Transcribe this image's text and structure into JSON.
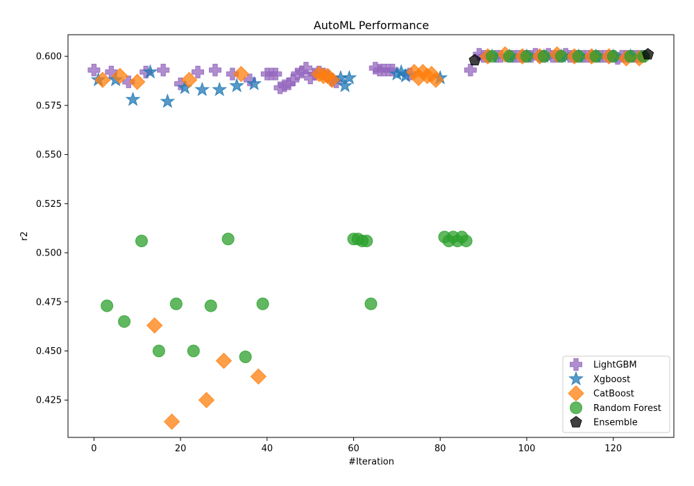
{
  "chart_data": {
    "type": "scatter",
    "title": "AutoML Performance",
    "xlabel": "#Iteration",
    "ylabel": "r2",
    "xlim": [
      -6,
      134
    ],
    "ylim": [
      0.406,
      0.611
    ],
    "xticks": [
      0,
      20,
      40,
      60,
      80,
      100,
      120
    ],
    "yticks": [
      0.425,
      0.45,
      0.475,
      0.5,
      0.525,
      0.55,
      0.575,
      0.6
    ],
    "ytick_labels": [
      "0.425",
      "0.450",
      "0.475",
      "0.500",
      "0.525",
      "0.550",
      "0.575",
      "0.600"
    ],
    "grid": false,
    "legend_position": "lower right",
    "series": [
      {
        "name": "LightGBM",
        "marker": "plus",
        "color": "#9467bd",
        "points": [
          [
            0,
            0.593
          ],
          [
            4,
            0.592
          ],
          [
            8,
            0.587
          ],
          [
            12,
            0.592
          ],
          [
            16,
            0.593
          ],
          [
            20,
            0.586
          ],
          [
            24,
            0.592
          ],
          [
            28,
            0.593
          ],
          [
            32,
            0.591
          ],
          [
            36,
            0.588
          ],
          [
            40,
            0.591
          ],
          [
            41,
            0.591
          ],
          [
            42,
            0.591
          ],
          [
            43,
            0.584
          ],
          [
            44,
            0.585
          ],
          [
            45,
            0.586
          ],
          [
            46,
            0.588
          ],
          [
            47,
            0.591
          ],
          [
            48,
            0.592
          ],
          [
            49,
            0.594
          ],
          [
            50,
            0.589
          ],
          [
            51,
            0.591
          ],
          [
            52,
            0.592
          ],
          [
            53,
            0.591
          ],
          [
            54,
            0.59
          ],
          [
            55,
            0.588
          ],
          [
            56,
            0.587
          ],
          [
            65,
            0.594
          ],
          [
            66,
            0.593
          ],
          [
            67,
            0.593
          ],
          [
            68,
            0.593
          ],
          [
            69,
            0.593
          ],
          [
            73,
            0.591
          ],
          [
            87,
            0.593
          ],
          [
            89,
            0.601
          ],
          [
            90,
            0.6
          ],
          [
            91,
            0.6
          ],
          [
            93,
            0.6
          ],
          [
            94,
            0.6
          ],
          [
            96,
            0.6
          ],
          [
            97,
            0.6
          ],
          [
            98,
            0.6
          ],
          [
            99,
            0.6
          ],
          [
            100,
            0.6
          ],
          [
            101,
            0.6
          ],
          [
            102,
            0.601
          ],
          [
            103,
            0.6
          ],
          [
            104,
            0.6
          ],
          [
            105,
            0.601
          ],
          [
            106,
            0.6
          ],
          [
            107,
            0.6
          ],
          [
            108,
            0.6
          ],
          [
            109,
            0.601
          ],
          [
            110,
            0.6
          ],
          [
            111,
            0.6
          ],
          [
            112,
            0.6
          ],
          [
            113,
            0.6
          ],
          [
            114,
            0.6
          ],
          [
            115,
            0.6
          ],
          [
            116,
            0.6
          ],
          [
            117,
            0.6
          ],
          [
            118,
            0.6
          ],
          [
            119,
            0.6
          ],
          [
            120,
            0.6
          ],
          [
            121,
            0.599
          ],
          [
            122,
            0.6
          ],
          [
            123,
            0.6
          ],
          [
            124,
            0.6
          ],
          [
            125,
            0.6
          ],
          [
            126,
            0.6
          ],
          [
            127,
            0.6
          ]
        ]
      },
      {
        "name": "Xgboost",
        "marker": "star",
        "color": "#1f77b4",
        "points": [
          [
            1,
            0.588
          ],
          [
            5,
            0.588
          ],
          [
            9,
            0.578
          ],
          [
            13,
            0.592
          ],
          [
            17,
            0.577
          ],
          [
            21,
            0.584
          ],
          [
            25,
            0.583
          ],
          [
            29,
            0.583
          ],
          [
            33,
            0.585
          ],
          [
            37,
            0.586
          ],
          [
            57,
            0.589
          ],
          [
            58,
            0.585
          ],
          [
            59,
            0.589
          ],
          [
            70,
            0.591
          ],
          [
            71,
            0.592
          ],
          [
            72,
            0.59
          ],
          [
            80,
            0.589
          ],
          [
            92,
            0.6
          ],
          [
            96,
            0.6
          ],
          [
            100,
            0.6
          ],
          [
            104,
            0.6
          ],
          [
            108,
            0.6
          ],
          [
            112,
            0.6
          ],
          [
            116,
            0.6
          ],
          [
            120,
            0.6
          ],
          [
            124,
            0.6
          ]
        ]
      },
      {
        "name": "CatBoost",
        "marker": "diamond",
        "color": "#ff7f0e",
        "points": [
          [
            2,
            0.588
          ],
          [
            6,
            0.59
          ],
          [
            10,
            0.587
          ],
          [
            14,
            0.463
          ],
          [
            18,
            0.414
          ],
          [
            22,
            0.588
          ],
          [
            26,
            0.425
          ],
          [
            30,
            0.445
          ],
          [
            34,
            0.591
          ],
          [
            38,
            0.437
          ],
          [
            52,
            0.591
          ],
          [
            53,
            0.59
          ],
          [
            54,
            0.59
          ],
          [
            55,
            0.588
          ],
          [
            74,
            0.592
          ],
          [
            75,
            0.589
          ],
          [
            76,
            0.592
          ],
          [
            77,
            0.59
          ],
          [
            78,
            0.591
          ],
          [
            79,
            0.588
          ],
          [
            91,
            0.6
          ],
          [
            95,
            0.601
          ],
          [
            99,
            0.6
          ],
          [
            103,
            0.6
          ],
          [
            107,
            0.601
          ],
          [
            111,
            0.6
          ],
          [
            115,
            0.6
          ],
          [
            119,
            0.6
          ],
          [
            123,
            0.599
          ],
          [
            126,
            0.599
          ]
        ]
      },
      {
        "name": "Random Forest",
        "marker": "circle",
        "color": "#2ca02c",
        "points": [
          [
            3,
            0.473
          ],
          [
            7,
            0.465
          ],
          [
            11,
            0.506
          ],
          [
            15,
            0.45
          ],
          [
            19,
            0.474
          ],
          [
            23,
            0.45
          ],
          [
            27,
            0.473
          ],
          [
            31,
            0.507
          ],
          [
            35,
            0.447
          ],
          [
            39,
            0.474
          ],
          [
            60,
            0.507
          ],
          [
            61,
            0.507
          ],
          [
            62,
            0.506
          ],
          [
            63,
            0.506
          ],
          [
            64,
            0.474
          ],
          [
            81,
            0.508
          ],
          [
            82,
            0.506
          ],
          [
            83,
            0.508
          ],
          [
            84,
            0.506
          ],
          [
            85,
            0.508
          ],
          [
            86,
            0.506
          ],
          [
            92,
            0.6
          ],
          [
            96,
            0.6
          ],
          [
            100,
            0.6
          ],
          [
            104,
            0.6
          ],
          [
            108,
            0.6
          ],
          [
            112,
            0.6
          ],
          [
            116,
            0.6
          ],
          [
            120,
            0.6
          ],
          [
            124,
            0.6
          ],
          [
            127,
            0.6
          ]
        ]
      },
      {
        "name": "Ensemble",
        "marker": "pentagon",
        "color": "#000000",
        "points": [
          [
            88,
            0.598
          ],
          [
            128,
            0.601
          ]
        ]
      }
    ]
  }
}
